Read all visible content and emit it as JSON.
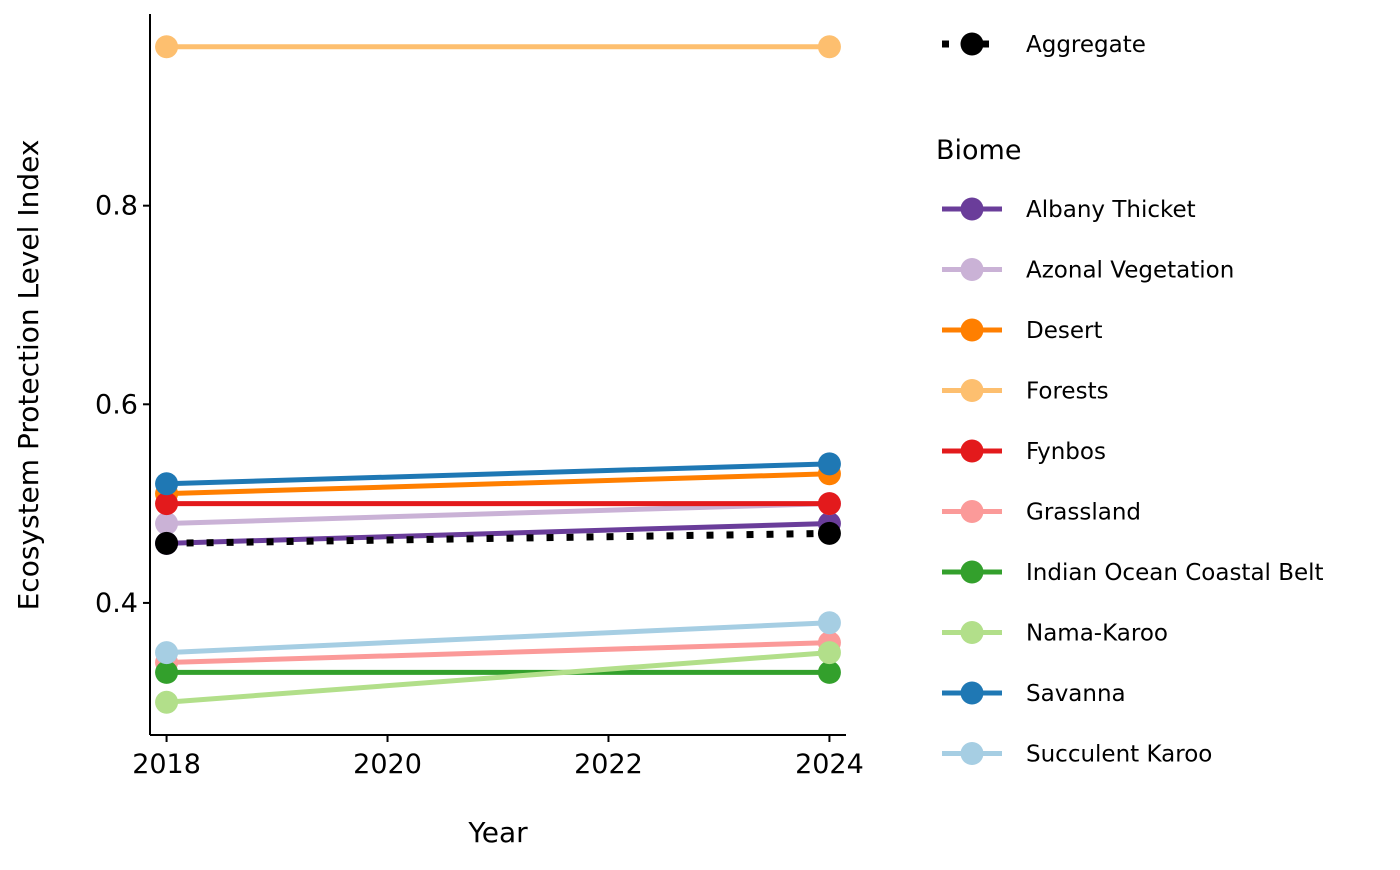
{
  "chart_data": {
    "type": "line",
    "xlabel": "Year",
    "ylabel": "Ecosystem Protection Level Index",
    "x": [
      2018,
      2024
    ],
    "xlim": [
      2017.85,
      2024.15
    ],
    "ylim": [
      0.267,
      0.993
    ],
    "xticks": [
      2018,
      2020,
      2022,
      2024
    ],
    "yticks": [
      0.4,
      0.6,
      0.8
    ],
    "ytick_labels": [
      "0.4",
      "0.6",
      "0.8"
    ],
    "xtick_labels": [
      "2018",
      "2020",
      "2022",
      "2024"
    ],
    "grid": false,
    "legend_position": "right",
    "aggregate_legend": {
      "entries": [
        {
          "name": "Aggregate",
          "color": "#000000",
          "linestyle": "dotted"
        }
      ]
    },
    "biome_legend": {
      "title": "Biome"
    },
    "aggregate": {
      "name": "Aggregate",
      "color": "#000000",
      "values": [
        0.46,
        0.47
      ]
    },
    "series": [
      {
        "name": "Albany Thicket",
        "color": "#6A3D9A",
        "values": [
          0.46,
          0.48
        ]
      },
      {
        "name": "Azonal Vegetation",
        "color": "#CAB2D6",
        "values": [
          0.48,
          0.5
        ]
      },
      {
        "name": "Desert",
        "color": "#FF7F00",
        "values": [
          0.51,
          0.53
        ]
      },
      {
        "name": "Forests",
        "color": "#FDBF6F",
        "values": [
          0.96,
          0.96
        ]
      },
      {
        "name": "Fynbos",
        "color": "#E31A1C",
        "values": [
          0.5,
          0.5
        ]
      },
      {
        "name": "Grassland",
        "color": "#FB9A99",
        "values": [
          0.34,
          0.36
        ]
      },
      {
        "name": "Indian Ocean Coastal Belt",
        "color": "#33A02C",
        "values": [
          0.33,
          0.33
        ]
      },
      {
        "name": "Nama-Karoo",
        "color": "#B2DF8A",
        "values": [
          0.3,
          0.35
        ]
      },
      {
        "name": "Savanna",
        "color": "#1F78B4",
        "values": [
          0.52,
          0.54
        ]
      },
      {
        "name": "Succulent Karoo",
        "color": "#A6CEE3",
        "values": [
          0.35,
          0.38
        ]
      }
    ]
  }
}
